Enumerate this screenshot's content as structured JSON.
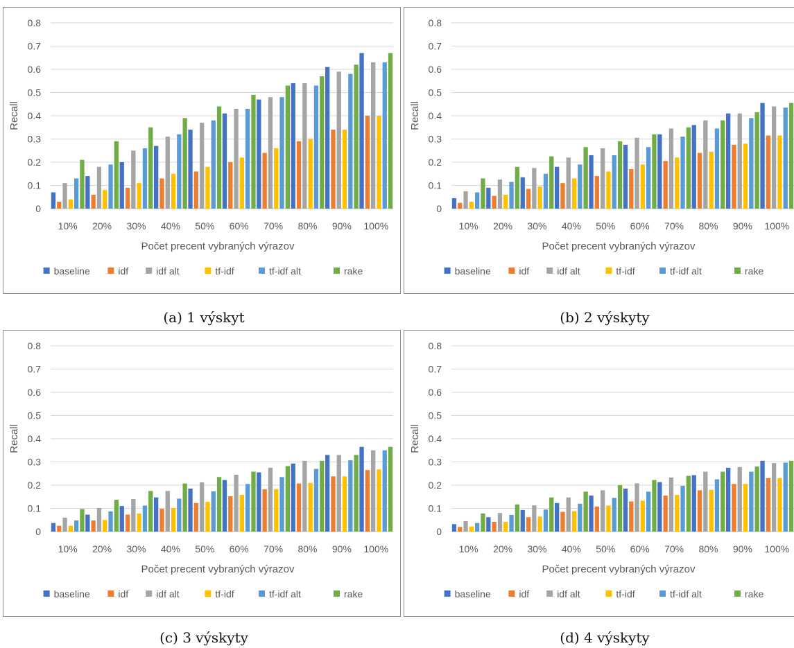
{
  "captions": [
    "(a) 1 výskyt",
    "(b) 2 výskyty",
    "(c) 3 výskyty",
    "(d) 4 výskyty"
  ],
  "colors": {
    "baseline": "#4472C4",
    "idf": "#ED7D31",
    "idf alt": "#A5A5A5",
    "tf-idf": "#FFC000",
    "tf-idf alt": "#5B9BD5",
    "rake": "#70AD47",
    "grid": "#d9d9d9",
    "text": "#595959"
  },
  "chart_data": [
    {
      "type": "bar",
      "ylabel": "Recall",
      "xlabel": "Počet precent vybraných výrazov",
      "ylim": [
        0,
        0.8
      ],
      "yticks": [
        "0",
        "0.1",
        "0.2",
        "0.3",
        "0.4",
        "0.5",
        "0.6",
        "0.7",
        "0.8"
      ],
      "categories": [
        "10%",
        "20%",
        "30%",
        "40%",
        "50%",
        "60%",
        "70%",
        "80%",
        "90%",
        "100%"
      ],
      "legend_position": "bottom",
      "grid": true,
      "series": [
        {
          "name": "baseline",
          "values": [
            0.07,
            0.14,
            0.2,
            0.27,
            0.34,
            0.41,
            0.47,
            0.54,
            0.61,
            0.67
          ]
        },
        {
          "name": "idf",
          "values": [
            0.03,
            0.06,
            0.09,
            0.13,
            0.16,
            0.2,
            0.24,
            0.29,
            0.34,
            0.4
          ]
        },
        {
          "name": "idf alt",
          "values": [
            0.11,
            0.18,
            0.25,
            0.31,
            0.37,
            0.43,
            0.48,
            0.54,
            0.59,
            0.63
          ]
        },
        {
          "name": "tf-idf",
          "values": [
            0.04,
            0.08,
            0.11,
            0.15,
            0.18,
            0.22,
            0.26,
            0.3,
            0.34,
            0.4
          ]
        },
        {
          "name": "tf-idf alt",
          "values": [
            0.13,
            0.19,
            0.26,
            0.32,
            0.38,
            0.43,
            0.48,
            0.53,
            0.58,
            0.63
          ]
        },
        {
          "name": "rake",
          "values": [
            0.21,
            0.29,
            0.35,
            0.39,
            0.44,
            0.49,
            0.53,
            0.57,
            0.62,
            0.67
          ]
        }
      ]
    },
    {
      "type": "bar",
      "ylabel": "Recall",
      "xlabel": "Počet precent vybraných výrazov",
      "ylim": [
        0,
        0.8
      ],
      "yticks": [
        "0",
        "0.1",
        "0.2",
        "0.3",
        "0.4",
        "0.5",
        "0.6",
        "0.7",
        "0.8"
      ],
      "categories": [
        "10%",
        "20%",
        "30%",
        "40%",
        "50%",
        "60%",
        "70%",
        "80%",
        "90%",
        "100%"
      ],
      "legend_position": "bottom",
      "grid": true,
      "series": [
        {
          "name": "baseline",
          "values": [
            0.045,
            0.09,
            0.135,
            0.18,
            0.23,
            0.275,
            0.32,
            0.36,
            0.41,
            0.455
          ]
        },
        {
          "name": "idf",
          "values": [
            0.025,
            0.055,
            0.085,
            0.11,
            0.14,
            0.17,
            0.205,
            0.24,
            0.275,
            0.315
          ]
        },
        {
          "name": "idf alt",
          "values": [
            0.075,
            0.125,
            0.175,
            0.22,
            0.26,
            0.305,
            0.345,
            0.38,
            0.41,
            0.44
          ]
        },
        {
          "name": "tf-idf",
          "values": [
            0.03,
            0.06,
            0.095,
            0.13,
            0.16,
            0.19,
            0.22,
            0.245,
            0.28,
            0.315
          ]
        },
        {
          "name": "tf-idf alt",
          "values": [
            0.07,
            0.115,
            0.15,
            0.19,
            0.23,
            0.265,
            0.31,
            0.345,
            0.39,
            0.435
          ]
        },
        {
          "name": "rake",
          "values": [
            0.13,
            0.18,
            0.225,
            0.265,
            0.29,
            0.32,
            0.35,
            0.38,
            0.415,
            0.455
          ]
        }
      ]
    },
    {
      "type": "bar",
      "ylabel": "Recall",
      "xlabel": "Počet precent vybraných výrazov",
      "ylim": [
        0,
        0.8
      ],
      "yticks": [
        "0",
        "0.1",
        "0.2",
        "0.3",
        "0.4",
        "0.5",
        "0.6",
        "0.7",
        "0.8"
      ],
      "categories": [
        "10%",
        "20%",
        "30%",
        "40%",
        "50%",
        "60%",
        "70%",
        "80%",
        "90%",
        "100%"
      ],
      "legend_position": "bottom",
      "grid": true,
      "series": [
        {
          "name": "baseline",
          "values": [
            0.037,
            0.073,
            0.11,
            0.147,
            0.185,
            0.222,
            0.255,
            0.293,
            0.33,
            0.365
          ]
        },
        {
          "name": "idf",
          "values": [
            0.025,
            0.048,
            0.073,
            0.098,
            0.123,
            0.152,
            0.182,
            0.207,
            0.238,
            0.265
          ]
        },
        {
          "name": "idf alt",
          "values": [
            0.06,
            0.102,
            0.14,
            0.175,
            0.212,
            0.245,
            0.275,
            0.305,
            0.33,
            0.35
          ]
        },
        {
          "name": "tf-idf",
          "values": [
            0.025,
            0.05,
            0.078,
            0.102,
            0.128,
            0.158,
            0.182,
            0.21,
            0.238,
            0.268
          ]
        },
        {
          "name": "tf-idf alt",
          "values": [
            0.048,
            0.087,
            0.112,
            0.142,
            0.173,
            0.205,
            0.235,
            0.27,
            0.307,
            0.35
          ]
        },
        {
          "name": "rake",
          "values": [
            0.097,
            0.137,
            0.175,
            0.207,
            0.235,
            0.258,
            0.282,
            0.305,
            0.33,
            0.365
          ]
        }
      ]
    },
    {
      "type": "bar",
      "ylabel": "Recall",
      "xlabel": "Počet precent vybraných výrazov",
      "ylim": [
        0,
        0.8
      ],
      "yticks": [
        "0",
        "0.1",
        "0.2",
        "0.3",
        "0.4",
        "0.5",
        "0.6",
        "0.7",
        "0.8"
      ],
      "categories": [
        "10%",
        "20%",
        "30%",
        "40%",
        "50%",
        "60%",
        "70%",
        "80%",
        "90%",
        "100%"
      ],
      "legend_position": "bottom",
      "grid": true,
      "series": [
        {
          "name": "baseline",
          "values": [
            0.032,
            0.062,
            0.093,
            0.123,
            0.155,
            0.185,
            0.213,
            0.243,
            0.275,
            0.305
          ]
        },
        {
          "name": "idf",
          "values": [
            0.02,
            0.042,
            0.062,
            0.085,
            0.108,
            0.13,
            0.155,
            0.178,
            0.205,
            0.23
          ]
        },
        {
          "name": "idf alt",
          "values": [
            0.045,
            0.08,
            0.113,
            0.147,
            0.178,
            0.208,
            0.233,
            0.258,
            0.278,
            0.295
          ]
        },
        {
          "name": "tf-idf",
          "values": [
            0.022,
            0.042,
            0.065,
            0.088,
            0.112,
            0.133,
            0.158,
            0.18,
            0.205,
            0.23
          ]
        },
        {
          "name": "tf-idf alt",
          "values": [
            0.037,
            0.072,
            0.095,
            0.12,
            0.145,
            0.172,
            0.197,
            0.225,
            0.258,
            0.297
          ]
        },
        {
          "name": "rake",
          "values": [
            0.078,
            0.117,
            0.147,
            0.172,
            0.2,
            0.222,
            0.24,
            0.258,
            0.28,
            0.305
          ]
        }
      ]
    }
  ]
}
